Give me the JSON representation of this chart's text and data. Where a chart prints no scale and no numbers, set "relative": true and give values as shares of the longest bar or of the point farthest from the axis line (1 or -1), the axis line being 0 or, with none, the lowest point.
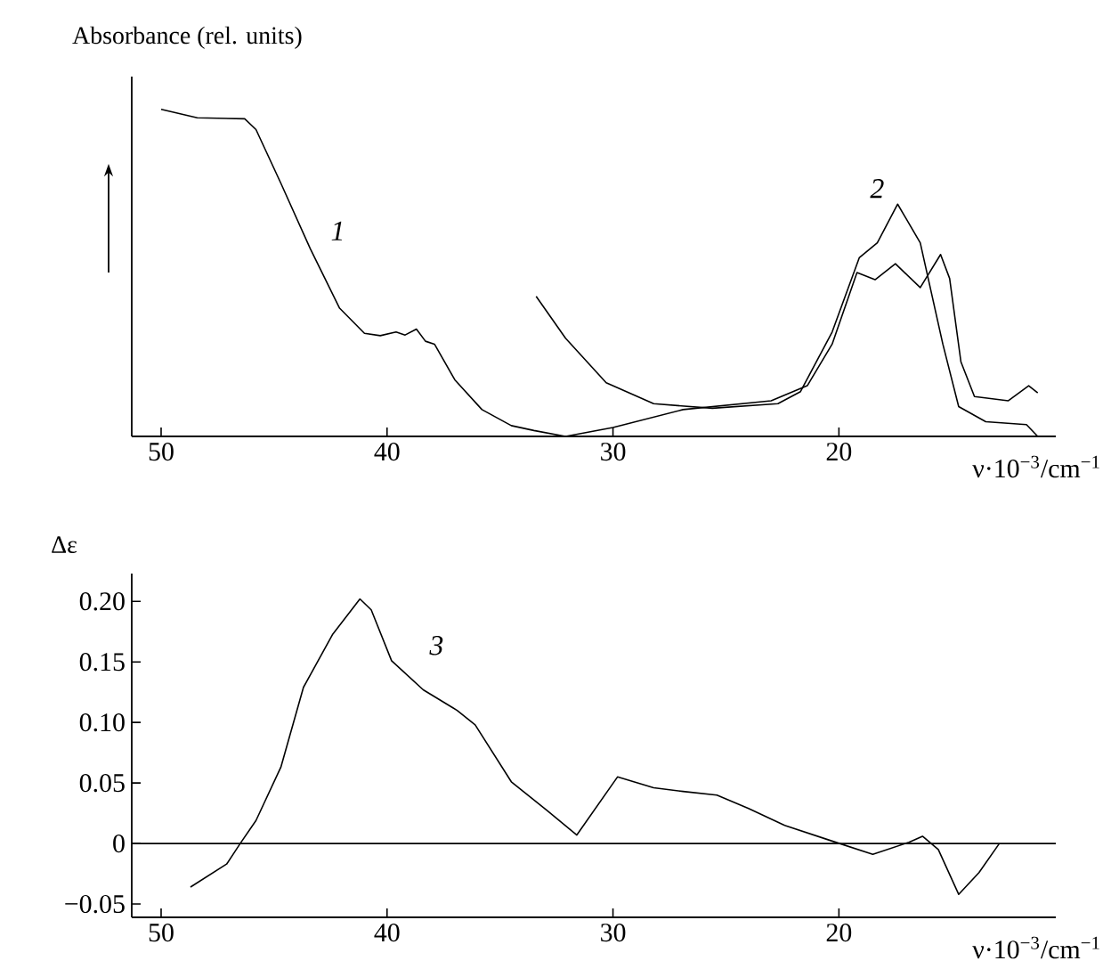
{
  "chart_data": [
    {
      "type": "line",
      "ylabel": "Absorbance (rel. units)",
      "xlabel": "ν·10$^{−3}$/cm$^{−1}$",
      "relative": true,
      "xlim": [
        51.3,
        10.4
      ],
      "xticks": [
        50,
        40,
        30,
        20
      ],
      "tick_labels": "x",
      "series": [
        {
          "name": "1",
          "color": "#000000",
          "x": [
            50,
            48.4,
            46.3,
            45.8,
            44.7,
            43.4,
            42.1,
            41.0,
            40.3,
            39.6,
            39.2,
            38.7,
            38.3,
            37.9,
            37.0,
            35.8,
            34.5,
            33.5,
            32.1,
            30.0,
            26.9,
            23.0,
            21.4,
            20.3,
            19.2,
            18.4,
            17.5,
            16.4,
            15.5,
            15.1,
            14.6,
            14.0,
            12.5,
            11.6,
            11.2
          ],
          "values": [
            1,
            0.974,
            0.971,
            0.938,
            0.774,
            0.574,
            0.392,
            0.315,
            0.308,
            0.319,
            0.31,
            0.328,
            0.291,
            0.282,
            0.173,
            0.082,
            0.033,
            0.018,
            0,
            0.027,
            0.082,
            0.109,
            0.155,
            0.282,
            0.501,
            0.479,
            0.528,
            0.455,
            0.556,
            0.483,
            0.228,
            0.122,
            0.109,
            0.155,
            0.133
          ]
        },
        {
          "name": "2",
          "color": "#000000",
          "x": [
            33.4,
            32.1,
            30.3,
            28.2,
            25.6,
            22.7,
            21.7,
            20.3,
            19.1,
            18.3,
            17.4,
            16.4,
            15.4,
            14.7,
            13.5,
            11.7,
            11.2
          ],
          "values": [
            0.428,
            0.3,
            0.164,
            0.1,
            0.086,
            0.1,
            0.137,
            0.319,
            0.546,
            0.592,
            0.71,
            0.592,
            0.282,
            0.091,
            0.045,
            0.036,
            0
          ]
        }
      ]
    },
    {
      "type": "line",
      "ylabel": "Δε",
      "xlabel": "ν·10$^{−3}$/cm$^{−1}$",
      "xlim": [
        51.3,
        10.4
      ],
      "xticks": [
        50,
        40,
        30,
        20
      ],
      "ylim": [
        -0.061,
        0.223
      ],
      "yticks": [
        {
          "value": -0.05,
          "label": "−0.05"
        },
        {
          "value": 0,
          "label": "0"
        },
        {
          "value": 0.05,
          "label": "0.05"
        },
        {
          "value": 0.1,
          "label": "0.10"
        },
        {
          "value": 0.15,
          "label": "0.15"
        },
        {
          "value": 0.2,
          "label": "0.20"
        }
      ],
      "ref_lines": [
        {
          "axis": "y",
          "value": 0,
          "color": "#000000"
        }
      ],
      "series": [
        {
          "name": "3",
          "color": "#000000",
          "x": [
            48.7,
            47.1,
            46.5,
            45.8,
            44.7,
            43.7,
            42.4,
            41.2,
            40.7,
            39.8,
            38.4,
            36.9,
            36.1,
            34.5,
            32.9,
            31.6,
            29.8,
            28.2,
            26.9,
            25.4,
            24.0,
            22.4,
            20.3,
            18.5,
            16.9,
            16.3,
            15.6,
            14.7,
            13.8,
            12.9
          ],
          "values": [
            -0.036,
            -0.017,
            0,
            0.019,
            0.063,
            0.129,
            0.173,
            0.202,
            0.193,
            0.151,
            0.127,
            0.11,
            0.098,
            0.051,
            0.027,
            0.007,
            0.055,
            0.046,
            0.043,
            0.04,
            0.029,
            0.015,
            0.002,
            -0.009,
            0.001,
            0.006,
            -0.005,
            -0.042,
            -0.024,
            0
          ]
        }
      ]
    }
  ]
}
